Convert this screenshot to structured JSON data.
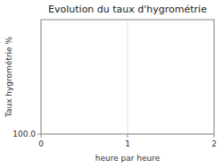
{
  "chart_data": {
    "type": "line",
    "title": "Evolution du taux d'hygrométrie",
    "xlabel": "heure par heure",
    "ylabel": "Taux hygrométrie %",
    "xlim": [
      0,
      2
    ],
    "xticks": [
      0,
      1,
      2
    ],
    "ylim": [
      100.0,
      0.0
    ],
    "yticks": [
      {
        "value": 100.0,
        "label": "100.0"
      }
    ],
    "grid": true
  }
}
